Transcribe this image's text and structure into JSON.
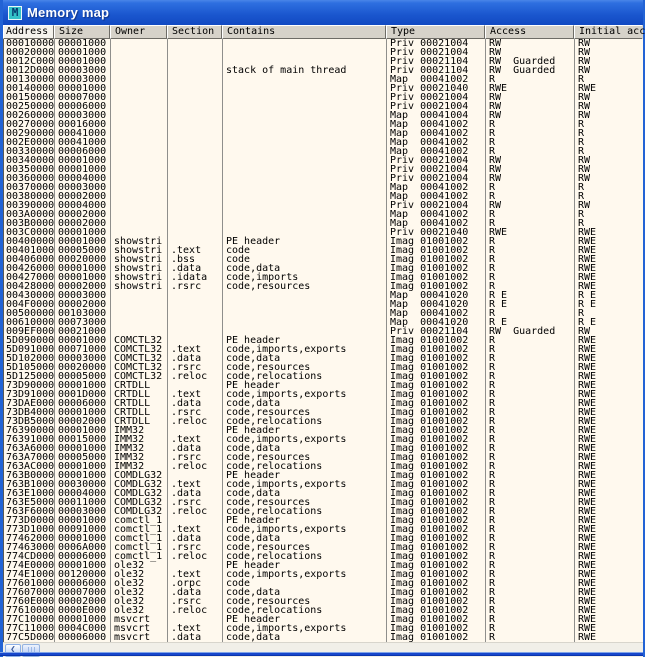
{
  "window": {
    "title": "Memory map",
    "icon_letter": "M"
  },
  "colors": {
    "titlebar_blue": "#1a56ce",
    "window_border_blue": "#2263d5",
    "table_background": "#fff9ee",
    "header_background": "#d6d2c9",
    "header_selected_background": "#f4f2ec",
    "icon_teal": "#35c2c8",
    "gridline_gray": "#8f8f8c"
  },
  "table": {
    "columns": [
      "Address",
      "Size",
      "Owner",
      "Section",
      "Contains",
      "Type",
      "Access",
      "Initial acc"
    ],
    "rows": [
      [
        "00010000",
        "00001000",
        "",
        "",
        "",
        "Priv 00021004",
        "RW",
        "RW"
      ],
      [
        "00020000",
        "00001000",
        "",
        "",
        "",
        "Priv 00021004",
        "RW",
        "RW"
      ],
      [
        "0012C000",
        "00001000",
        "",
        "",
        "",
        "Priv 00021104",
        "RW  Guarded",
        "RW"
      ],
      [
        "0012D000",
        "00003000",
        "",
        "",
        "stack of main thread",
        "Priv 00021104",
        "RW  Guarded",
        "RW"
      ],
      [
        "00130000",
        "00003000",
        "",
        "",
        "",
        "Map  00041002",
        "R",
        "R"
      ],
      [
        "00140000",
        "00001000",
        "",
        "",
        "",
        "Priv 00021040",
        "RWE",
        "RWE"
      ],
      [
        "00150000",
        "00007000",
        "",
        "",
        "",
        "Priv 00021004",
        "RW",
        "RW"
      ],
      [
        "00250000",
        "00006000",
        "",
        "",
        "",
        "Priv 00021004",
        "RW",
        "RW"
      ],
      [
        "00260000",
        "00003000",
        "",
        "",
        "",
        "Map  00041004",
        "RW",
        "RW"
      ],
      [
        "00270000",
        "00016000",
        "",
        "",
        "",
        "Map  00041002",
        "R",
        "R"
      ],
      [
        "00290000",
        "00041000",
        "",
        "",
        "",
        "Map  00041002",
        "R",
        "R"
      ],
      [
        "002E0000",
        "00041000",
        "",
        "",
        "",
        "Map  00041002",
        "R",
        "R"
      ],
      [
        "00330000",
        "00006000",
        "",
        "",
        "",
        "Map  00041002",
        "R",
        "R"
      ],
      [
        "00340000",
        "00001000",
        "",
        "",
        "",
        "Priv 00021004",
        "RW",
        "RW"
      ],
      [
        "00350000",
        "00001000",
        "",
        "",
        "",
        "Priv 00021004",
        "RW",
        "RW"
      ],
      [
        "00360000",
        "00004000",
        "",
        "",
        "",
        "Priv 00021004",
        "RW",
        "RW"
      ],
      [
        "00370000",
        "00003000",
        "",
        "",
        "",
        "Map  00041002",
        "R",
        "R"
      ],
      [
        "00380000",
        "00002000",
        "",
        "",
        "",
        "Map  00041002",
        "R",
        "R"
      ],
      [
        "00390000",
        "00004000",
        "",
        "",
        "",
        "Priv 00021004",
        "RW",
        "RW"
      ],
      [
        "003A0000",
        "00002000",
        "",
        "",
        "",
        "Map  00041002",
        "R",
        "R"
      ],
      [
        "003B0000",
        "00002000",
        "",
        "",
        "",
        "Map  00041002",
        "R",
        "R"
      ],
      [
        "003C0000",
        "00001000",
        "",
        "",
        "",
        "Priv 00021040",
        "RWE",
        "RWE"
      ],
      [
        "00400000",
        "00001000",
        "showstri",
        "",
        "PE header",
        "Imag 01001002",
        "R",
        "RWE"
      ],
      [
        "00401000",
        "00005000",
        "showstri",
        ".text",
        "code",
        "Imag 01001002",
        "R",
        "RWE"
      ],
      [
        "00406000",
        "00020000",
        "showstri",
        ".bss",
        "code",
        "Imag 01001002",
        "R",
        "RWE"
      ],
      [
        "00426000",
        "00001000",
        "showstri",
        ".data",
        "code,data",
        "Imag 01001002",
        "R",
        "RWE"
      ],
      [
        "00427000",
        "00001000",
        "showstri",
        ".idata",
        "code,imports",
        "Imag 01001002",
        "R",
        "RWE"
      ],
      [
        "00428000",
        "00002000",
        "showstri",
        ".rsrc",
        "code,resources",
        "Imag 01001002",
        "R",
        "RWE"
      ],
      [
        "00430000",
        "00003000",
        "",
        "",
        "",
        "Map  00041020",
        "R E",
        "R E"
      ],
      [
        "004F0000",
        "00002000",
        "",
        "",
        "",
        "Map  00041020",
        "R E",
        "R E"
      ],
      [
        "00500000",
        "00103000",
        "",
        "",
        "",
        "Map  00041002",
        "R",
        "R"
      ],
      [
        "00610000",
        "00073000",
        "",
        "",
        "",
        "Map  00041020",
        "R E",
        "R E"
      ],
      [
        "009EF000",
        "00021000",
        "",
        "",
        "",
        "Priv 00021104",
        "RW  Guarded",
        "RW"
      ],
      [
        "5D090000",
        "00001000",
        "COMCTL32",
        "",
        "PE header",
        "Imag 01001002",
        "R",
        "RWE"
      ],
      [
        "5D091000",
        "00071000",
        "COMCTL32",
        ".text",
        "code,imports,exports",
        "Imag 01001002",
        "R",
        "RWE"
      ],
      [
        "5D102000",
        "00003000",
        "COMCTL32",
        ".data",
        "code,data",
        "Imag 01001002",
        "R",
        "RWE"
      ],
      [
        "5D105000",
        "00020000",
        "COMCTL32",
        ".rsrc",
        "code,resources",
        "Imag 01001002",
        "R",
        "RWE"
      ],
      [
        "5D125000",
        "00005000",
        "COMCTL32",
        ".reloc",
        "code,relocations",
        "Imag 01001002",
        "R",
        "RWE"
      ],
      [
        "73D90000",
        "00001000",
        "CRTDLL",
        "",
        "PE header",
        "Imag 01001002",
        "R",
        "RWE"
      ],
      [
        "73D91000",
        "0001D000",
        "CRTDLL",
        ".text",
        "code,imports,exports",
        "Imag 01001002",
        "R",
        "RWE"
      ],
      [
        "73DAE000",
        "00006000",
        "CRTDLL",
        ".data",
        "code,data",
        "Imag 01001002",
        "R",
        "RWE"
      ],
      [
        "73DB4000",
        "00001000",
        "CRTDLL",
        ".rsrc",
        "code,resources",
        "Imag 01001002",
        "R",
        "RWE"
      ],
      [
        "73DB5000",
        "00002000",
        "CRTDLL",
        ".reloc",
        "code,relocations",
        "Imag 01001002",
        "R",
        "RWE"
      ],
      [
        "76390000",
        "00001000",
        "IMM32",
        "",
        "PE header",
        "Imag 01001002",
        "R",
        "RWE"
      ],
      [
        "76391000",
        "00015000",
        "IMM32",
        ".text",
        "code,imports,exports",
        "Imag 01001002",
        "R",
        "RWE"
      ],
      [
        "763A6000",
        "00001000",
        "IMM32",
        ".data",
        "code,data",
        "Imag 01001002",
        "R",
        "RWE"
      ],
      [
        "763A7000",
        "00005000",
        "IMM32",
        ".rsrc",
        "code,resources",
        "Imag 01001002",
        "R",
        "RWE"
      ],
      [
        "763AC000",
        "00001000",
        "IMM32",
        ".reloc",
        "code,relocations",
        "Imag 01001002",
        "R",
        "RWE"
      ],
      [
        "763B0000",
        "00001000",
        "COMDLG32",
        "",
        "PE header",
        "Imag 01001002",
        "R",
        "RWE"
      ],
      [
        "763B1000",
        "00030000",
        "COMDLG32",
        ".text",
        "code,imports,exports",
        "Imag 01001002",
        "R",
        "RWE"
      ],
      [
        "763E1000",
        "00004000",
        "COMDLG32",
        ".data",
        "code,data",
        "Imag 01001002",
        "R",
        "RWE"
      ],
      [
        "763E5000",
        "00011000",
        "COMDLG32",
        ".rsrc",
        "code,resources",
        "Imag 01001002",
        "R",
        "RWE"
      ],
      [
        "763F6000",
        "00003000",
        "COMDLG32",
        ".reloc",
        "code,relocations",
        "Imag 01001002",
        "R",
        "RWE"
      ],
      [
        "773D0000",
        "00001000",
        "comctl_1",
        "",
        "PE header",
        "Imag 01001002",
        "R",
        "RWE"
      ],
      [
        "773D1000",
        "00091000",
        "comctl_1",
        ".text",
        "code,imports,exports",
        "Imag 01001002",
        "R",
        "RWE"
      ],
      [
        "77462000",
        "00001000",
        "comctl_1",
        ".data",
        "code,data",
        "Imag 01001002",
        "R",
        "RWE"
      ],
      [
        "77463000",
        "0006A000",
        "comctl_1",
        ".rsrc",
        "code,resources",
        "Imag 01001002",
        "R",
        "RWE"
      ],
      [
        "774CD000",
        "00006000",
        "comctl_1",
        ".reloc",
        "code,relocations",
        "Imag 01001002",
        "R",
        "RWE"
      ],
      [
        "774E0000",
        "00001000",
        "ole32",
        "",
        "PE header",
        "Imag 01001002",
        "R",
        "RWE"
      ],
      [
        "774E1000",
        "00120000",
        "ole32",
        ".text",
        "code,imports,exports",
        "Imag 01001002",
        "R",
        "RWE"
      ],
      [
        "77601000",
        "00006000",
        "ole32",
        ".orpc",
        "code",
        "Imag 01001002",
        "R",
        "RWE"
      ],
      [
        "77607000",
        "00007000",
        "ole32",
        ".data",
        "code,data",
        "Imag 01001002",
        "R",
        "RWE"
      ],
      [
        "7760E000",
        "00002000",
        "ole32",
        ".rsrc",
        "code,resources",
        "Imag 01001002",
        "R",
        "RWE"
      ],
      [
        "77610000",
        "0000E000",
        "ole32",
        ".reloc",
        "code,relocations",
        "Imag 01001002",
        "R",
        "RWE"
      ],
      [
        "77C10000",
        "00001000",
        "msvcrt",
        "",
        "PE header",
        "Imag 01001002",
        "R",
        "RWE"
      ],
      [
        "77C11000",
        "0004C000",
        "msvcrt",
        ".text",
        "code,imports,exports",
        "Imag 01001002",
        "R",
        "RWE"
      ],
      [
        "77C5D000",
        "00006000",
        "msvcrt",
        ".data",
        "code,data",
        "Imag 01001002",
        "R",
        "RWE"
      ]
    ]
  },
  "scrollbar": {
    "orientation": "horizontal",
    "left_arrow": "left-arrow"
  }
}
